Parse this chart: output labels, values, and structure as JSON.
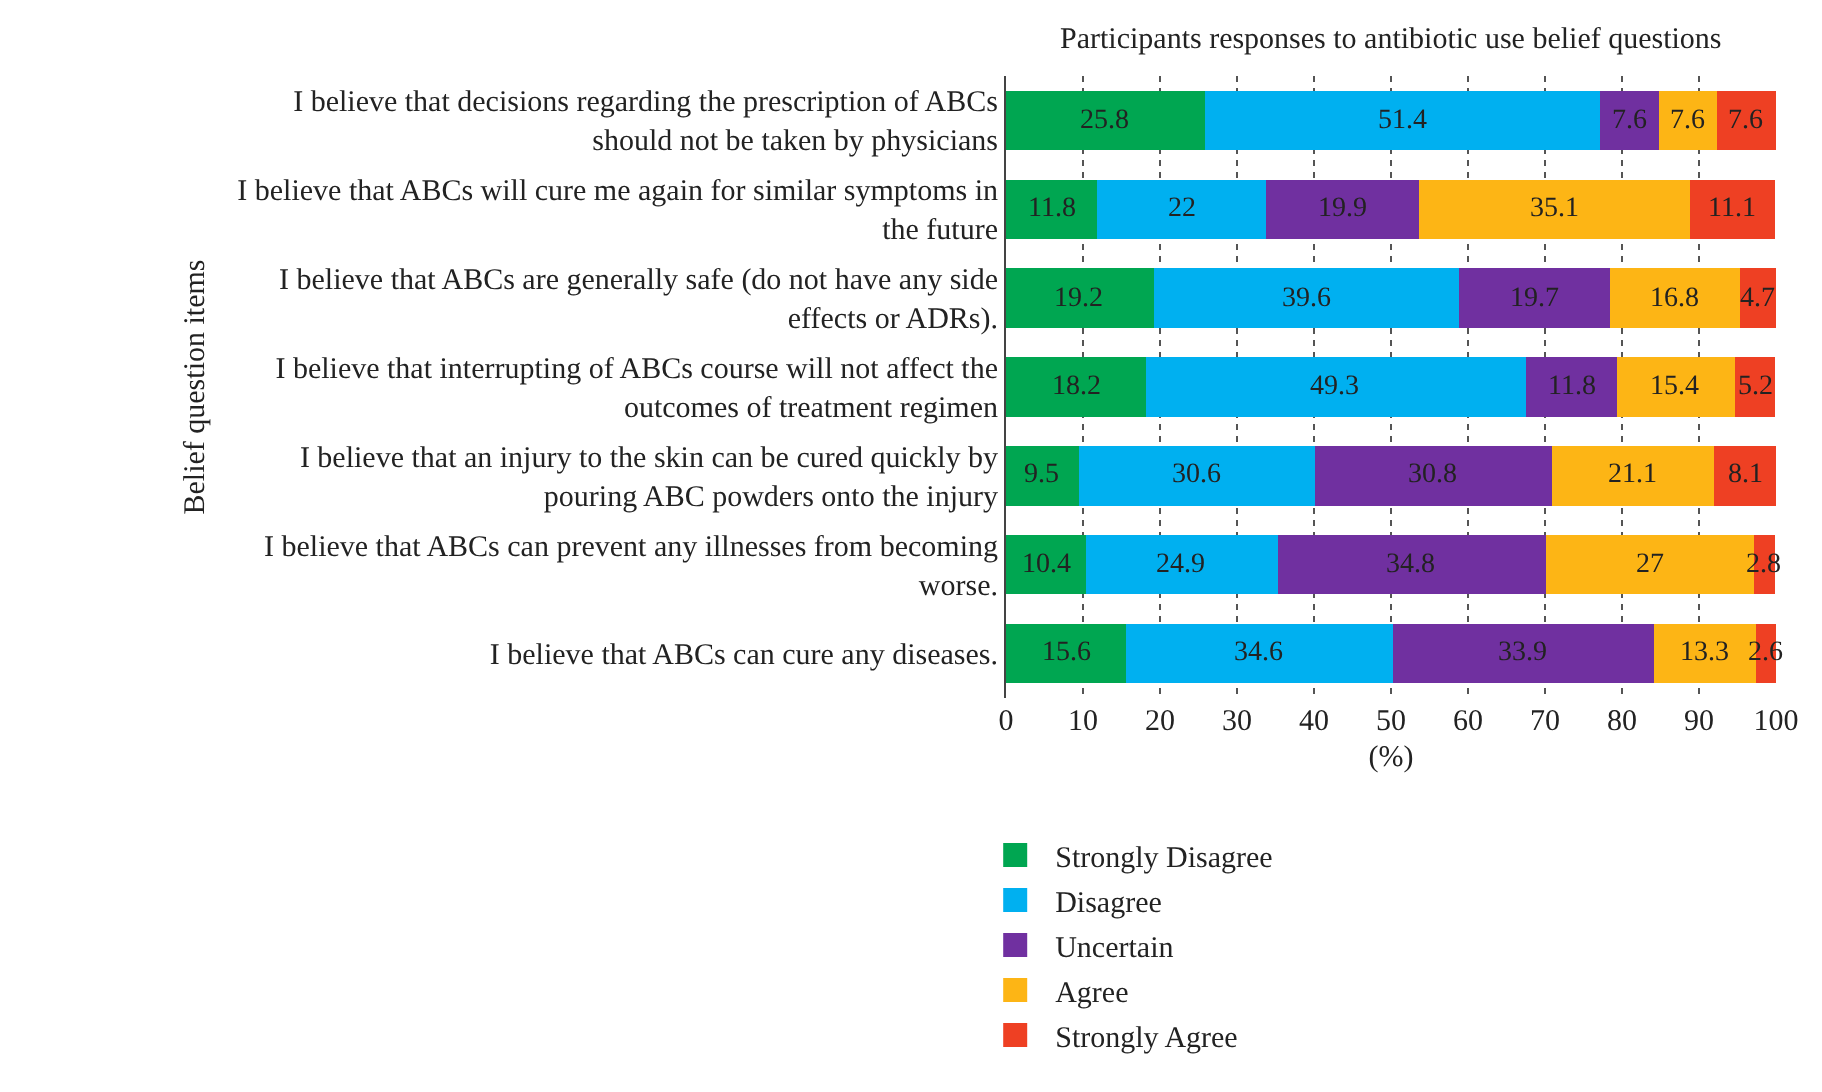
{
  "chart_data": {
    "type": "bar",
    "orientation": "horizontal",
    "stacked": true,
    "title": "Participants responses to antibiotic use belief questions",
    "xlabel": "(%)",
    "ylabel": "Belief question items",
    "categories": [
      "I believe that decisions regarding the prescription of ABCs should not be taken by physicians",
      "I believe that ABCs will cure me again for similar symptoms in the future",
      "I believe that ABCs are generally safe (do not have any side effects or ADRs).",
      "I believe that interrupting of ABCs course will not affect the outcomes of treatment regimen",
      "I believe that an injury to the skin can be cured quickly by pouring ABC powders onto the injury",
      "I believe that ABCs can prevent any illnesses from becoming worse.",
      "I believe that ABCs can cure any diseases."
    ],
    "series": [
      {
        "name": "Strongly Disagree",
        "color": "#00a651",
        "values": [
          25.8,
          11.8,
          19.2,
          18.2,
          9.5,
          10.4,
          15.6
        ]
      },
      {
        "name": "Disagree",
        "color": "#00b0f0",
        "values": [
          51.4,
          22,
          39.6,
          49.3,
          30.6,
          24.9,
          34.6
        ]
      },
      {
        "name": "Uncertain",
        "color": "#7030a0",
        "values": [
          7.6,
          19.9,
          19.7,
          11.8,
          30.8,
          34.8,
          33.9
        ]
      },
      {
        "name": "Agree",
        "color": "#fdb515",
        "values": [
          7.6,
          35.1,
          16.8,
          15.4,
          21.1,
          27,
          13.3
        ]
      },
      {
        "name": "Strongly Agree",
        "color": "#ee4023",
        "values": [
          7.6,
          11.1,
          4.7,
          5.2,
          8.1,
          2.8,
          2.6
        ]
      }
    ],
    "xlim": [
      0,
      100
    ],
    "xticks": [
      0,
      10,
      20,
      30,
      40,
      50,
      60,
      70,
      80,
      90,
      100
    ],
    "grid": "x",
    "legend": "bottom",
    "data_labels": true
  }
}
